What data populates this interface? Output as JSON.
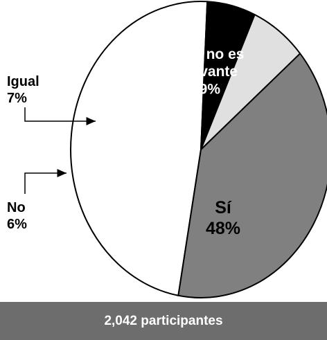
{
  "chart_data": {
    "type": "pie",
    "slices": [
      {
        "label": "Sí",
        "value": 48,
        "value_label": "48%",
        "color": "#ffffff"
      },
      {
        "label": "No",
        "value": 6,
        "value_label": "6%",
        "color": "#000000"
      },
      {
        "label": "Igual",
        "value": 7,
        "value_label": "7%",
        "color": "#e0e0e0"
      },
      {
        "label": "Sexo no es relevante",
        "value": 39,
        "value_label": "39%",
        "color": "#808080"
      }
    ],
    "title": "",
    "legend": "none"
  },
  "footer": {
    "text": "2,042 participantes",
    "color": "#6d6d6d"
  }
}
